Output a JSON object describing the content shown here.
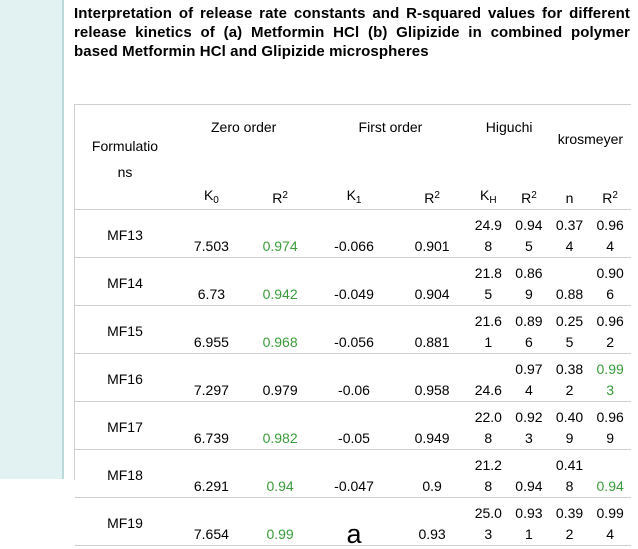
{
  "title": "Interpretation of release rate constants and R-squared values for different release kinetics of (a) Metformin HCl (b) Glipizide in combined polymer based Metformin HCl and Glipizide microspheres",
  "table": {
    "formulation_header_line1": "Formulatio",
    "formulation_header_line2": "ns",
    "groups": [
      "Zero order",
      "First order",
      "Higuchi",
      "krosmeyer"
    ],
    "subheaders": {
      "k0": "K",
      "k0_sub": "0",
      "r2": "R",
      "r2_sup": "2",
      "k1": "K",
      "k1_sub": "1",
      "kh": "K",
      "kh_sub": "H",
      "n": "n"
    },
    "rows": [
      {
        "name": "MF13",
        "k0": "7.503",
        "r0": "0.974",
        "k1": "-0.066",
        "r1": "0.901",
        "kh": [
          "24.9",
          "8"
        ],
        "rh": [
          "0.94",
          "5"
        ],
        "n": [
          "0.37",
          "4"
        ],
        "rk": [
          "0.96",
          "4"
        ]
      },
      {
        "name": "MF14",
        "k0": "6.73",
        "r0": "0.942",
        "k1": "-0.049",
        "r1": "0.904",
        "kh": [
          "21.8",
          "5"
        ],
        "rh": [
          "0.86",
          "9"
        ],
        "n": [
          "",
          "0.88"
        ],
        "rk": [
          "0.90",
          "6"
        ]
      },
      {
        "name": "MF15",
        "k0": "6.955",
        "r0": "0.968",
        "k1": "-0.056",
        "r1": "0.881",
        "kh": [
          "21.6",
          "1"
        ],
        "rh": [
          "0.89",
          "6"
        ],
        "n": [
          "0.25",
          "5"
        ],
        "rk": [
          "0.96",
          "2"
        ]
      },
      {
        "name": "MF16",
        "k0": "7.297",
        "r0": "0.979",
        "k1": "-0.06",
        "r1": "0.958",
        "kh": [
          "",
          "24.6"
        ],
        "rh": [
          "0.97",
          "4"
        ],
        "n": [
          "0.38",
          "2"
        ],
        "rk": [
          "0.99",
          "3"
        ]
      },
      {
        "name": "MF17",
        "k0": "6.739",
        "r0": "0.982",
        "k1": "-0.05",
        "r1": "0.949",
        "kh": [
          "22.0",
          "8"
        ],
        "rh": [
          "0.92",
          "3"
        ],
        "n": [
          "0.40",
          "9"
        ],
        "rk": [
          "0.96",
          "9"
        ]
      },
      {
        "name": "MF18",
        "k0": "6.291",
        "r0": "0.94",
        "k1": "-0.047",
        "r1": "0.9",
        "kh": [
          "21.2",
          "8"
        ],
        "rh": [
          "",
          "0.94"
        ],
        "n": [
          "0.41",
          "8"
        ],
        "rk": [
          "",
          "0.94"
        ]
      },
      {
        "name": "MF19",
        "k0": "7.654",
        "r0": "0.99",
        "k1": "a",
        "r1": "0.93",
        "kh": [
          "25.0",
          "3"
        ],
        "rh": [
          "0.93",
          "1"
        ],
        "n": [
          "0.39",
          "2"
        ],
        "rk": [
          "0.99",
          "4"
        ]
      }
    ],
    "green_rk_rows": [
      3,
      5
    ],
    "colors": {
      "green": "#3a9a3a",
      "stripe": "#e2f2f2"
    }
  }
}
